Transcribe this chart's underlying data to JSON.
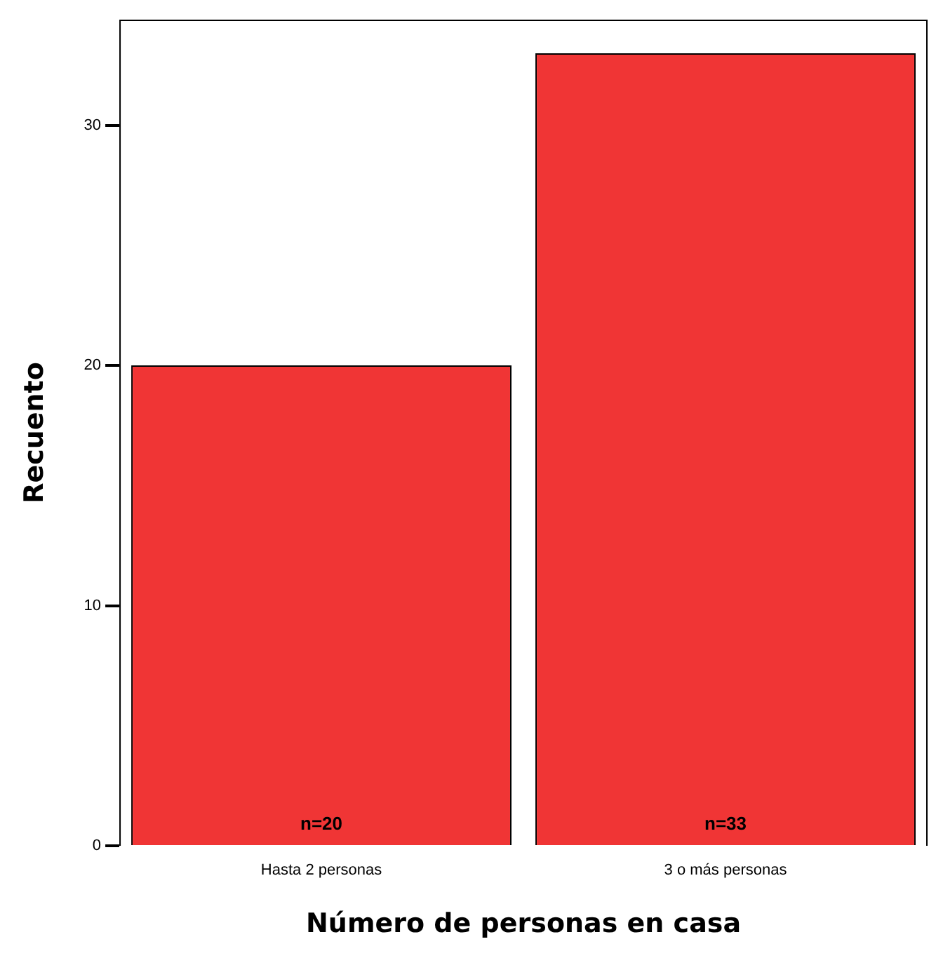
{
  "chart_data": {
    "type": "bar",
    "xlabel": "Número de personas en casa",
    "ylabel": "Recuento",
    "categories": [
      "Hasta 2 personas",
      "3 o más personas"
    ],
    "values": [
      20,
      33
    ],
    "color": "#f03535",
    "value_labels": [
      "n=20",
      "n=33"
    ],
    "ylim": [
      0,
      34.4
    ],
    "yticks": [
      0,
      10,
      20,
      30
    ],
    "grid": false,
    "legend": false
  }
}
